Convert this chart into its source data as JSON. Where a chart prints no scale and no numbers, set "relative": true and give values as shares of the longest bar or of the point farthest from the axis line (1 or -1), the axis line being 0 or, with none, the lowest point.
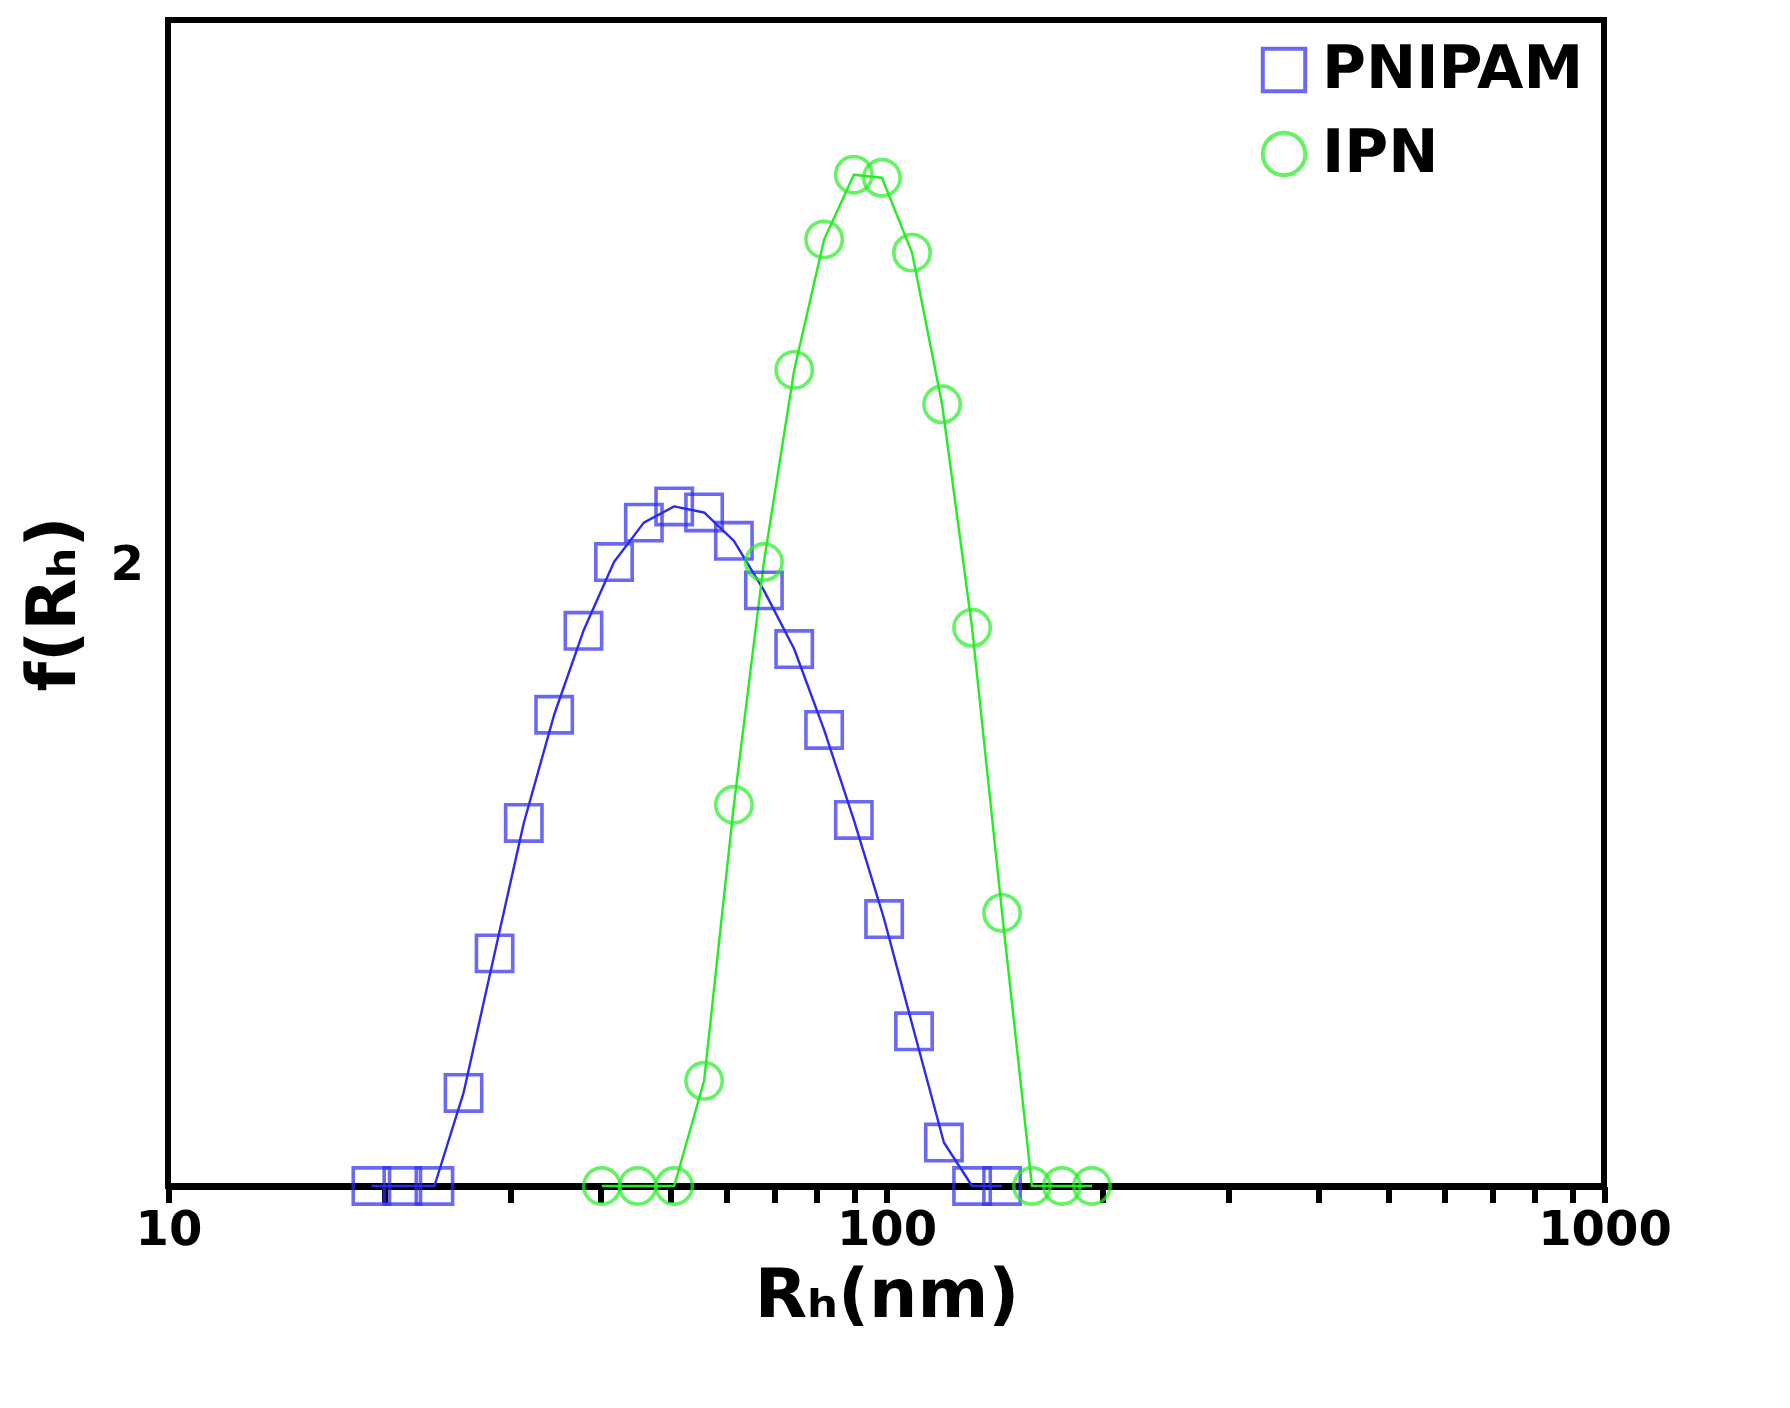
{
  "chart_data": {
    "type": "line",
    "xlabel": "Rₕ(nm)",
    "ylabel": "f(Rₕ)",
    "log": "x",
    "grid": false,
    "legend": "top right",
    "line_style": "solid",
    "relative": true,
    "annotations": [
      "2"
    ],
    "xlim": [
      10,
      1000
    ],
    "xticks": [
      10,
      {
        "value": 20,
        "label": null
      },
      {
        "value": 30,
        "label": null
      },
      {
        "value": 40,
        "label": null
      },
      {
        "value": 50,
        "label": null
      },
      {
        "value": 60,
        "label": null
      },
      {
        "value": 70,
        "label": null
      },
      {
        "value": 80,
        "label": null
      },
      {
        "value": 90,
        "label": null
      },
      100,
      {
        "value": 200,
        "label": null
      },
      {
        "value": 300,
        "label": null
      },
      {
        "value": 400,
        "label": null
      },
      {
        "value": 500,
        "label": null
      },
      {
        "value": 600,
        "label": null
      },
      {
        "value": 700,
        "label": null
      },
      {
        "value": 800,
        "label": null
      },
      {
        "value": 900,
        "label": null
      },
      1000
    ],
    "series": [
      {
        "name": "PNIPAM",
        "color": "#2b2bf0",
        "marker": "square",
        "x": [
          19.2,
          21.2,
          23.5,
          25.8,
          28.5,
          31.3,
          34.5,
          37.9,
          41.8,
          46.0,
          50.7,
          55.8,
          61.4,
          67.6,
          74.5,
          82.0,
          90.2,
          99.4,
          109.4,
          120.4,
          131.8,
          145.1
        ],
        "values": [
          0,
          0,
          0,
          0.092,
          0.23,
          0.359,
          0.466,
          0.549,
          0.617,
          0.656,
          0.672,
          0.666,
          0.638,
          0.589,
          0.531,
          0.451,
          0.362,
          0.264,
          0.153,
          0.043,
          0,
          0
        ]
      },
      {
        "name": "IPN",
        "color": "#22ee22",
        "marker": "circle",
        "x": [
          40.2,
          45.1,
          50.7,
          55.8,
          61.4,
          67.6,
          74.5,
          82.0,
          90.2,
          98.7,
          108.7,
          119.7,
          131.8,
          145.1,
          159.7,
          175.8,
          193.6
        ],
        "values": [
          0,
          0,
          0,
          0.104,
          0.377,
          0.617,
          0.807,
          0.936,
          1,
          0.997,
          0.923,
          0.773,
          0.552,
          0.27,
          0,
          0,
          0
        ]
      }
    ]
  }
}
